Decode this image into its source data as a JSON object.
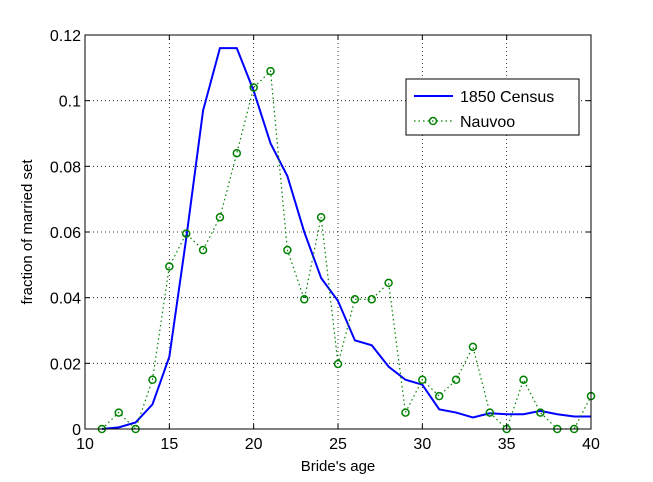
{
  "chart_data": {
    "type": "line",
    "title": "",
    "xlabel": "Bride's age",
    "ylabel": "fraction of married set",
    "xlim": [
      10,
      40
    ],
    "ylim": [
      0,
      0.12
    ],
    "x_ticks": [
      10,
      15,
      20,
      25,
      30,
      35,
      40
    ],
    "x_tick_labels": [
      "10",
      "15",
      "20",
      "25",
      "30",
      "35",
      "40"
    ],
    "y_ticks": [
      0,
      0.02,
      0.04,
      0.06,
      0.08,
      0.1,
      0.12
    ],
    "y_tick_labels": [
      "0",
      "0.02",
      "0.04",
      "0.06",
      "0.08",
      "0.1",
      "0.12"
    ],
    "grid": true,
    "legend_position": "top-right",
    "series": [
      {
        "name": "1850 Census",
        "style": "solid",
        "color": "#0000ff",
        "points": [
          [
            11,
            0
          ],
          [
            12,
            0.0005
          ],
          [
            13,
            0.002
          ],
          [
            14,
            0.0075
          ],
          [
            15,
            0.022
          ],
          [
            16,
            0.058
          ],
          [
            17,
            0.097
          ],
          [
            18,
            0.116
          ],
          [
            19,
            0.116
          ],
          [
            20,
            0.103
          ],
          [
            21,
            0.087
          ],
          [
            22,
            0.077
          ],
          [
            23,
            0.06
          ],
          [
            24,
            0.046
          ],
          [
            25,
            0.039
          ],
          [
            26,
            0.027
          ],
          [
            27,
            0.0255
          ],
          [
            28,
            0.019
          ],
          [
            29,
            0.015
          ],
          [
            30,
            0.0135
          ],
          [
            31,
            0.006
          ],
          [
            32,
            0.005
          ],
          [
            33,
            0.0035
          ],
          [
            34,
            0.0048
          ],
          [
            35,
            0.0045
          ],
          [
            36,
            0.0045
          ],
          [
            37,
            0.0055
          ],
          [
            38,
            0.0045
          ],
          [
            39,
            0.0038
          ],
          [
            40,
            0.0038
          ]
        ]
      },
      {
        "name": "Nauvoo",
        "style": "dotted",
        "marker": "circle",
        "color": "#008000",
        "points": [
          [
            11,
            0
          ],
          [
            12,
            0.005
          ],
          [
            13,
            0
          ],
          [
            14,
            0.015
          ],
          [
            15,
            0.0495
          ],
          [
            16,
            0.0595
          ],
          [
            17,
            0.0545
          ],
          [
            18,
            0.0645
          ],
          [
            19,
            0.084
          ],
          [
            20,
            0.104
          ],
          [
            21,
            0.109
          ],
          [
            22,
            0.0545
          ],
          [
            23,
            0.0395
          ],
          [
            24,
            0.0645
          ],
          [
            25,
            0.0198
          ],
          [
            26,
            0.0395
          ],
          [
            27,
            0.0395
          ],
          [
            28,
            0.0445
          ],
          [
            29,
            0.005
          ],
          [
            30,
            0.015
          ],
          [
            31,
            0.01
          ],
          [
            32,
            0.015
          ],
          [
            33,
            0.025
          ],
          [
            34,
            0.005
          ],
          [
            35,
            0
          ],
          [
            36,
            0.015
          ],
          [
            37,
            0.005
          ],
          [
            38,
            0
          ],
          [
            39,
            0
          ],
          [
            40,
            0.01
          ]
        ]
      }
    ]
  }
}
